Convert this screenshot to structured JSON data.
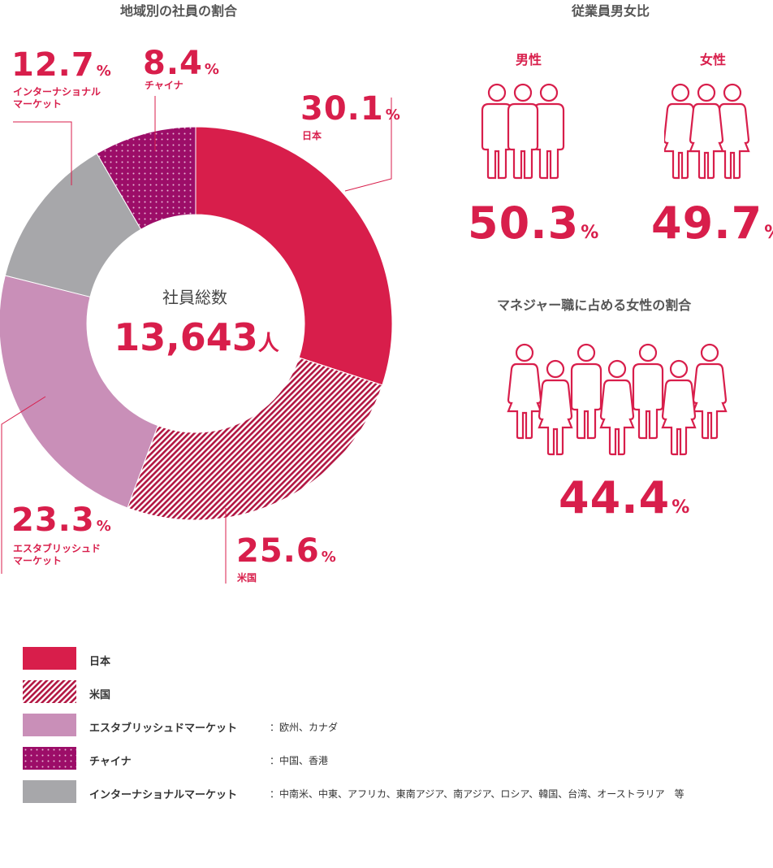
{
  "chart_data": {
    "type": "pie",
    "title": "地域別の社員の割合",
    "center_label": "社員総数",
    "total": "13,643",
    "total_unit": "人",
    "slices": [
      {
        "label": "日本",
        "value": 30.1,
        "value_text": "30.1",
        "color": "#d81e4b",
        "pattern": "solid"
      },
      {
        "label": "米国",
        "value": 25.6,
        "value_text": "25.6",
        "color": "#b21642",
        "pattern": "diagonal"
      },
      {
        "label": "エスタブリッシュドマーケット",
        "value": 23.3,
        "value_text": "23.3",
        "color": "#c98fb8",
        "pattern": "solid"
      },
      {
        "label": "インターナショナルマーケット",
        "value": 12.7,
        "value_text": "12.7",
        "color": "#a7a7aa",
        "pattern": "solid"
      },
      {
        "label": "チャイナ",
        "value": 8.4,
        "value_text": "8.4",
        "color": "#9c0d68",
        "pattern": "dots"
      }
    ],
    "slice_labels": {
      "japan": "日本",
      "us": "米国",
      "established_l1": "エスタブリッシュド",
      "established_l2": "マーケット",
      "intl_l1": "インターナショナル",
      "intl_l2": "マーケット",
      "china": "チャイナ"
    },
    "unit": "%"
  },
  "gender": {
    "title": "従業員男女比",
    "male_label": "男性",
    "male_value": "50.3",
    "female_label": "女性",
    "female_value": "49.7",
    "unit": "%"
  },
  "manager": {
    "title": "マネジャー職に占める女性の割合",
    "value": "44.4",
    "unit": "%"
  },
  "legend": [
    {
      "name": "日本",
      "desc": ""
    },
    {
      "name": "米国",
      "desc": ""
    },
    {
      "name": "エスタブリッシュドマーケット",
      "desc": "：欧州、カナダ"
    },
    {
      "name": "チャイナ",
      "desc": "：中国、香港"
    },
    {
      "name": "インターナショナルマーケット",
      "desc": "：中南米、中東、アフリカ、東南アジア、南アジア、ロシア、韓国、台湾、オーストラリア　等"
    }
  ]
}
